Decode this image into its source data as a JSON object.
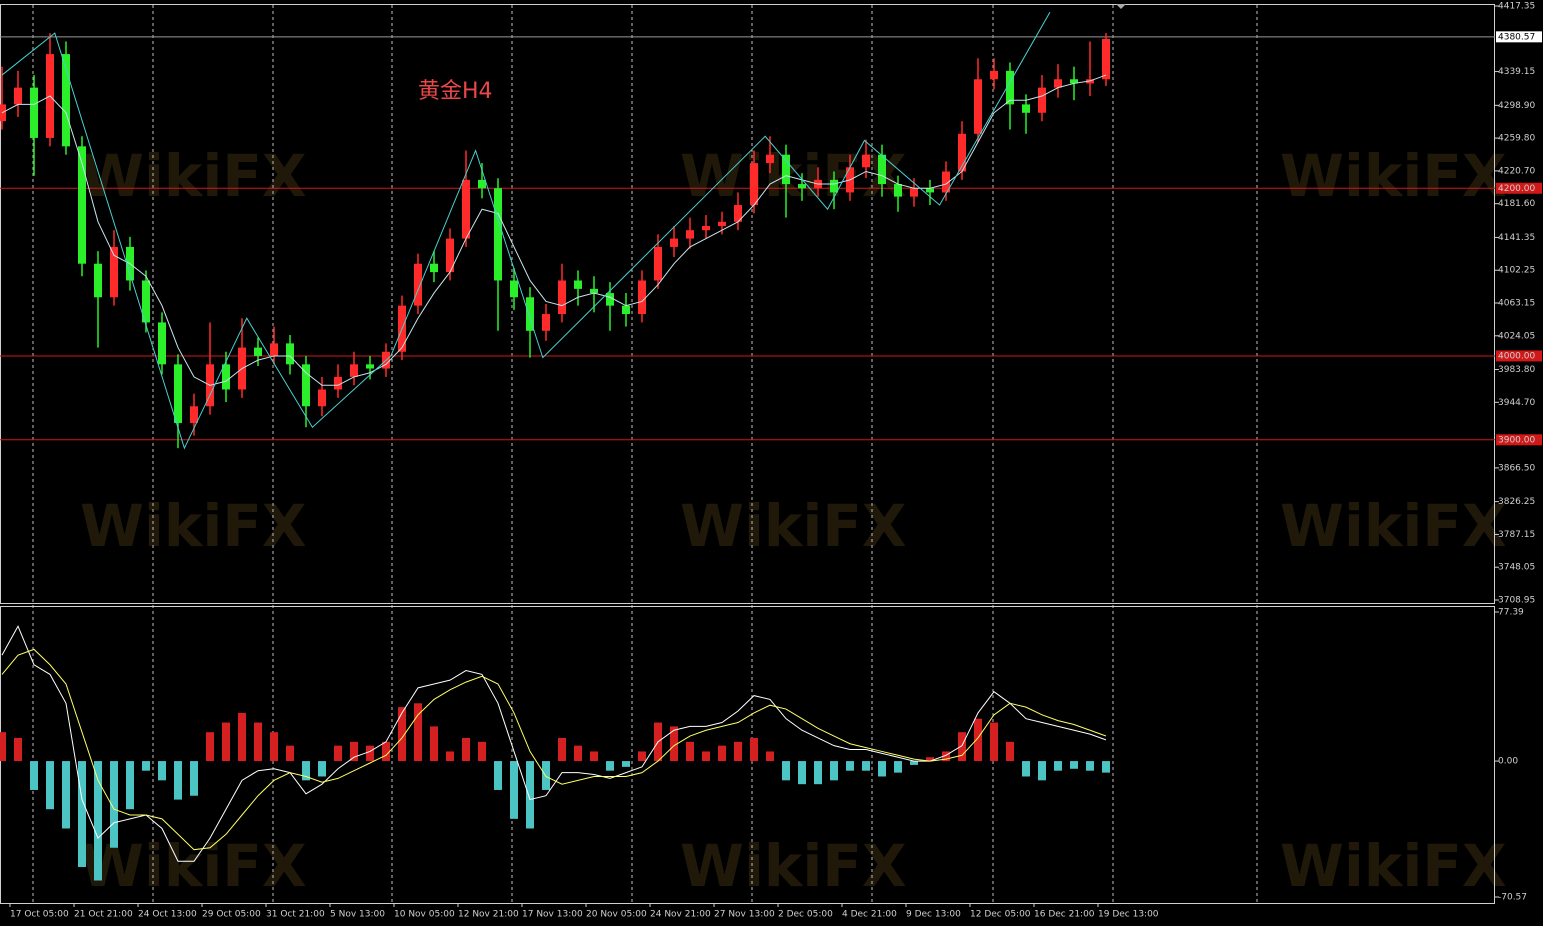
{
  "chart_data": [
    {
      "type": "candlestick",
      "title": "黄金H4",
      "watermark": "WikiFX",
      "up_color": "#ff2a2a",
      "down_color": "#2aef2a",
      "ma_color": "#c8e6ee",
      "zigzag_color": "#48d0d0",
      "level_color": "#d01818",
      "ylim": [
        3708.95,
        4417.35
      ],
      "yticks": [
        {
          "value": 4417.35,
          "label": "4417.35"
        },
        {
          "value": 4339.15,
          "label": "4339.15"
        },
        {
          "value": 4298.9,
          "label": "4298.90"
        },
        {
          "value": 4259.8,
          "label": "4259.80"
        },
        {
          "value": 4220.7,
          "label": "4220.70"
        },
        {
          "value": 4181.6,
          "label": "4181.60"
        },
        {
          "value": 4141.35,
          "label": "4141.35"
        },
        {
          "value": 4102.25,
          "label": "4102.25"
        },
        {
          "value": 4063.15,
          "label": "4063.15"
        },
        {
          "value": 4024.05,
          "label": "4024.05"
        },
        {
          "value": 3983.8,
          "label": "3983.80"
        },
        {
          "value": 3944.7,
          "label": "3944.70"
        },
        {
          "value": 3866.5,
          "label": "3866.50"
        },
        {
          "value": 3826.25,
          "label": "3826.25"
        },
        {
          "value": 3787.15,
          "label": "3787.15"
        },
        {
          "value": 3748.05,
          "label": "3748.05"
        },
        {
          "value": 3708.95,
          "label": "3708.95"
        }
      ],
      "last_price": {
        "value": 4380.57,
        "label": "4380.57"
      },
      "levels": [
        {
          "value": 4200,
          "label": "4200.00"
        },
        {
          "value": 4000,
          "label": "4000.00"
        },
        {
          "value": 3900,
          "label": "3900.00"
        }
      ],
      "xticks": [
        {
          "value": 0.5,
          "label": "17 Oct 05:00"
        },
        {
          "value": 4.5,
          "label": "21 Oct 21:00"
        },
        {
          "value": 8.5,
          "label": "24 Oct 13:00"
        },
        {
          "value": 12.5,
          "label": "29 Oct 05:00"
        },
        {
          "value": 16.5,
          "label": "31 Oct 21:00"
        },
        {
          "value": 20.5,
          "label": "5 Nov 13:00"
        },
        {
          "value": 24.5,
          "label": "10 Nov 05:00"
        },
        {
          "value": 28.5,
          "label": "12 Nov 21:00"
        },
        {
          "value": 32.5,
          "label": "17 Nov 13:00"
        },
        {
          "value": 36.5,
          "label": "20 Nov 05:00"
        },
        {
          "value": 40.5,
          "label": "24 Nov 21:00"
        },
        {
          "value": 44.5,
          "label": "27 Nov 13:00"
        },
        {
          "value": 48.5,
          "label": "2 Dec 05:00"
        },
        {
          "value": 52.5,
          "label": "4 Dec 21:00"
        },
        {
          "value": 56.5,
          "label": "9 Dec 13:00"
        },
        {
          "value": 60.5,
          "label": "12 Dec 05:00"
        },
        {
          "value": 64.5,
          "label": "16 Dec 21:00"
        },
        {
          "value": 68.5,
          "label": "19 Dec 13:00"
        }
      ],
      "candles": [
        [
          4280,
          4345,
          4270,
          4300
        ],
        [
          4300,
          4340,
          4285,
          4320
        ],
        [
          4320,
          4335,
          4215,
          4260
        ],
        [
          4260,
          4385,
          4250,
          4360
        ],
        [
          4360,
          4375,
          4240,
          4250
        ],
        [
          4250,
          4262,
          4095,
          4110
        ],
        [
          4110,
          4125,
          4010,
          4070
        ],
        [
          4070,
          4150,
          4060,
          4130
        ],
        [
          4130,
          4142,
          4078,
          4090
        ],
        [
          4090,
          4102,
          4028,
          4040
        ],
        [
          4040,
          4052,
          3978,
          3990
        ],
        [
          3990,
          4002,
          3890,
          3920
        ],
        [
          3920,
          3955,
          3905,
          3940
        ],
        [
          3940,
          4040,
          3930,
          3990
        ],
        [
          3990,
          4005,
          3945,
          3960
        ],
        [
          3960,
          4045,
          3950,
          4010
        ],
        [
          4010,
          4022,
          3988,
          4000
        ],
        [
          4000,
          4035,
          3990,
          4015
        ],
        [
          4015,
          4025,
          3978,
          3990
        ],
        [
          3990,
          4000,
          3915,
          3940
        ],
        [
          3940,
          3975,
          3928,
          3960
        ],
        [
          3960,
          3990,
          3950,
          3975
        ],
        [
          3975,
          4005,
          3965,
          3990
        ],
        [
          3990,
          4000,
          3972,
          3985
        ],
        [
          3985,
          4015,
          3975,
          4005
        ],
        [
          4005,
          4072,
          3995,
          4060
        ],
        [
          4060,
          4122,
          4050,
          4110
        ],
        [
          4110,
          4125,
          4088,
          4100
        ],
        [
          4100,
          4152,
          4090,
          4140
        ],
        [
          4140,
          4245,
          4130,
          4210
        ],
        [
          4210,
          4230,
          4188,
          4200
        ],
        [
          4200,
          4212,
          4030,
          4090
        ],
        [
          4090,
          4105,
          4055,
          4070
        ],
        [
          4070,
          4082,
          3998,
          4030
        ],
        [
          4030,
          4062,
          4018,
          4050
        ],
        [
          4050,
          4110,
          4040,
          4090
        ],
        [
          4090,
          4102,
          4060,
          4080
        ],
        [
          4080,
          4095,
          4052,
          4075
        ],
        [
          4075,
          4088,
          4030,
          4060
        ],
        [
          4060,
          4075,
          4035,
          4050
        ],
        [
          4050,
          4102,
          4040,
          4090
        ],
        [
          4090,
          4145,
          4080,
          4130
        ],
        [
          4130,
          4155,
          4118,
          4140
        ],
        [
          4140,
          4165,
          4128,
          4150
        ],
        [
          4150,
          4168,
          4140,
          4155
        ],
        [
          4155,
          4172,
          4145,
          4160
        ],
        [
          4160,
          4195,
          4150,
          4180
        ],
        [
          4180,
          4245,
          4170,
          4230
        ],
        [
          4230,
          4262,
          4218,
          4240
        ],
        [
          4240,
          4252,
          4165,
          4205
        ],
        [
          4205,
          4218,
          4185,
          4200
        ],
        [
          4200,
          4225,
          4190,
          4210
        ],
        [
          4210,
          4220,
          4175,
          4195
        ],
        [
          4195,
          4240,
          4185,
          4225
        ],
        [
          4225,
          4258,
          4212,
          4240
        ],
        [
          4240,
          4252,
          4190,
          4205
        ],
        [
          4205,
          4215,
          4172,
          4190
        ],
        [
          4190,
          4212,
          4178,
          4200
        ],
        [
          4200,
          4210,
          4180,
          4195
        ],
        [
          4195,
          4232,
          4185,
          4220
        ],
        [
          4220,
          4280,
          4210,
          4265
        ],
        [
          4265,
          4355,
          4255,
          4330
        ],
        [
          4330,
          4355,
          4318,
          4340
        ],
        [
          4340,
          4350,
          4270,
          4300
        ],
        [
          4300,
          4312,
          4265,
          4290
        ],
        [
          4290,
          4335,
          4280,
          4320
        ],
        [
          4320,
          4348,
          4308,
          4330
        ],
        [
          4330,
          4345,
          4305,
          4325
        ],
        [
          4325,
          4375,
          4310,
          4330
        ],
        [
          4330,
          4385,
          4322,
          4378
        ]
      ],
      "ma": [
        4290,
        4300,
        4300,
        4310,
        4290,
        4230,
        4160,
        4120,
        4110,
        4095,
        4060,
        4010,
        3975,
        3965,
        3970,
        3985,
        3995,
        4000,
        4000,
        3980,
        3965,
        3965,
        3975,
        3980,
        3990,
        4010,
        4045,
        4075,
        4100,
        4140,
        4175,
        4170,
        4130,
        4090,
        4065,
        4060,
        4070,
        4075,
        4070,
        4060,
        4065,
        4085,
        4110,
        4130,
        4140,
        4150,
        4160,
        4180,
        4205,
        4215,
        4210,
        4205,
        4205,
        4210,
        4220,
        4215,
        4205,
        4200,
        4200,
        4205,
        4220,
        4255,
        4290,
        4305,
        4305,
        4310,
        4320,
        4325,
        4328,
        4335
      ],
      "zigzag": {
        "x": [
          0,
          3.3,
          11.4,
          15.3,
          19.4,
          24.3,
          29.6,
          33.8,
          47.7,
          51.6,
          53.9,
          58.6,
          65.5
        ],
        "values": [
          4335,
          4385,
          3890,
          4045,
          3915,
          4000,
          4245,
          3998,
          4262,
          4175,
          4257,
          4180,
          4410
        ]
      }
    },
    {
      "type": "macd",
      "ylim": [
        -70.57,
        77.39
      ],
      "yticks": [
        {
          "value": 77.39,
          "label": "77.39"
        },
        {
          "value": 0,
          "label": "0.00"
        },
        {
          "value": -70.57,
          "label": "-70.57"
        }
      ],
      "pos_color": "#d42020",
      "neg_color": "#4cc4c4",
      "histogram": [
        15,
        12,
        -15,
        -25,
        -35,
        -55,
        -62,
        -45,
        -25,
        -5,
        -10,
        -20,
        -18,
        15,
        20,
        25,
        20,
        15,
        8,
        -10,
        -8,
        8,
        10,
        8,
        10,
        28,
        30,
        18,
        5,
        12,
        10,
        -15,
        -30,
        -35,
        -15,
        12,
        8,
        5,
        -5,
        -3,
        5,
        20,
        18,
        10,
        5,
        8,
        10,
        12,
        5,
        -10,
        -12,
        -12,
        -10,
        -5,
        -5,
        -8,
        -6,
        -2,
        2,
        5,
        15,
        22,
        20,
        10,
        -8,
        -10,
        -5,
        -4,
        -5,
        -6
      ],
      "lines": [
        {
          "color": "#ffffff",
          "values": [
            55,
            70,
            50,
            45,
            30,
            -20,
            -40,
            -32,
            -30,
            -28,
            -35,
            -52,
            -52,
            -40,
            -25,
            -10,
            -5,
            -4,
            -6,
            -17,
            -12,
            -4,
            2,
            5,
            10,
            25,
            38,
            40,
            42,
            47,
            45,
            30,
            5,
            -20,
            -18,
            -6,
            -6,
            -7,
            -9,
            -6,
            -3,
            10,
            16,
            18,
            18,
            20,
            26,
            34,
            32,
            22,
            16,
            12,
            8,
            6,
            6,
            4,
            2,
            0,
            0,
            3,
            8,
            25,
            36,
            30,
            22,
            20,
            18,
            16,
            14,
            11
          ]
        },
        {
          "color": "#ffff66",
          "values": [
            45,
            55,
            58,
            50,
            40,
            15,
            -10,
            -25,
            -28,
            -28,
            -30,
            -38,
            -46,
            -45,
            -38,
            -28,
            -18,
            -10,
            -6,
            -8,
            -11,
            -9,
            -5,
            -1,
            3,
            12,
            24,
            32,
            37,
            41,
            44,
            40,
            25,
            5,
            -8,
            -12,
            -10,
            -8,
            -8,
            -8,
            -6,
            0,
            8,
            13,
            16,
            18,
            20,
            25,
            29,
            27,
            22,
            17,
            13,
            9,
            7,
            5,
            3,
            1,
            0,
            1,
            3,
            12,
            24,
            30,
            28,
            24,
            21,
            19,
            16,
            13
          ]
        }
      ]
    }
  ]
}
